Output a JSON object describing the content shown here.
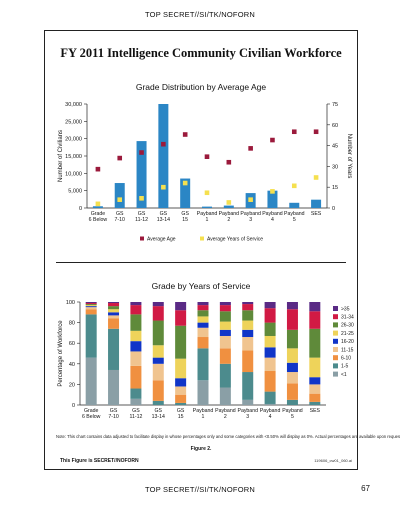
{
  "page": {
    "classification_top": "TOP SECRET//SI/TK/NOFORN",
    "classification_bottom": "TOP SECRET//SI/TK/NOFORN",
    "page_number": "67",
    "title": "FY 2011 Intelligence Community Civilian Workforce",
    "note": "Note: This chart contains data adjusted to facilitate display in whose percentages only and some categories with <0.50% will display as 0%. Actual percentages are available upon request.",
    "figure_label": "Figure 2.",
    "figure_classification": "This Figure is SECRET//NOFORN",
    "figure_id": "119606_cw01_060.ai"
  },
  "colors": {
    "bar_blue": "#2b86c5",
    "avg_age": "#9b1a3c",
    "avg_service": "#f5e04f",
    "years_service_legend": {
      ">35": "#5a2a85",
      "31-34": "#d11a44",
      "26-30": "#5f8a3a",
      "21-25": "#eed35a",
      "16-20": "#1035c8",
      "11-15": "#f0c48f",
      "6-10": "#f09040",
      "1-5": "#4c8b8d",
      "<1": "#8a9fa6"
    }
  },
  "chart_data": [
    {
      "type": "bar",
      "title": "Grade Distribution by Average Age",
      "ylabel": "Number of Civilians",
      "y2label": "Number of Years",
      "categories": [
        "Grade 6 Below",
        "GS 7-10",
        "GS 11-12",
        "GS 13-14",
        "GS 15",
        "Payband 1",
        "Payband 2",
        "Payband 3",
        "Payband 4",
        "Payband 5",
        "SES"
      ],
      "ylim": [
        0,
        30000
      ],
      "yticks": [
        "0",
        "5,000",
        "10,000",
        "15,000",
        "20,000",
        "25,000",
        "30,000"
      ],
      "y2lim": [
        0,
        75
      ],
      "y2ticks": [
        "0",
        "15",
        "30",
        "45",
        "60",
        "75"
      ],
      "values": [
        500,
        7200,
        19300,
        30000,
        8500,
        400,
        700,
        4300,
        5000,
        1500,
        2400
      ],
      "overlay_series": [
        {
          "name": "Average Age",
          "axis": "right",
          "values": [
            28,
            36,
            40,
            46,
            53,
            37,
            33,
            43,
            49,
            55,
            55
          ]
        },
        {
          "name": "Average Years of Service",
          "axis": "right",
          "values": [
            3,
            6,
            7,
            15,
            18,
            11,
            4,
            6,
            12,
            16,
            22
          ]
        }
      ],
      "legend_labels": [
        "Average Age",
        "Average Years of Service"
      ],
      "legend_position": "bottom"
    },
    {
      "type": "stacked-bar",
      "title": "Grade by Years of Service",
      "ylabel": "Percentage of Workforce",
      "categories": [
        "Grade 6 Below",
        "GS 7-10",
        "GS 11-12",
        "GS 13-14",
        "GS 15",
        "Payband 1",
        "Payband 2",
        "Payband 3",
        "Payband 4",
        "Payband 5",
        "SES"
      ],
      "ylim": [
        0,
        100
      ],
      "yticks": [
        "0",
        "20",
        "40",
        "60",
        "80",
        "100"
      ],
      "legend_position": "right",
      "series": [
        {
          "name": "<1",
          "values": [
            46,
            34,
            6,
            0,
            0,
            24,
            17,
            5,
            1,
            0,
            0
          ]
        },
        {
          "name": "1-5",
          "values": [
            42,
            40,
            10,
            4,
            2,
            31,
            23,
            27,
            12,
            5,
            3
          ]
        },
        {
          "name": "6-10",
          "values": [
            5,
            10,
            22,
            20,
            8,
            11,
            15,
            21,
            20,
            16,
            8
          ]
        },
        {
          "name": "11-15",
          "values": [
            2,
            3,
            14,
            16,
            8,
            9,
            12,
            13,
            13,
            11,
            9
          ]
        },
        {
          "name": "16-20",
          "values": [
            1,
            3,
            10,
            6,
            8,
            5,
            6,
            7,
            10,
            9,
            7
          ]
        },
        {
          "name": "21-25",
          "values": [
            1,
            3,
            10,
            12,
            19,
            6,
            8,
            9,
            11,
            14,
            19
          ]
        },
        {
          "name": "26-30",
          "values": [
            1,
            3,
            16,
            24,
            32,
            6,
            10,
            10,
            13,
            18,
            28
          ]
        },
        {
          "name": "31-34",
          "values": [
            1,
            3,
            9,
            14,
            15,
            5,
            6,
            6,
            14,
            20,
            17
          ]
        },
        {
          "name": ">35",
          "values": [
            1,
            1,
            3,
            4,
            8,
            3,
            3,
            2,
            6,
            7,
            9
          ]
        }
      ]
    }
  ]
}
